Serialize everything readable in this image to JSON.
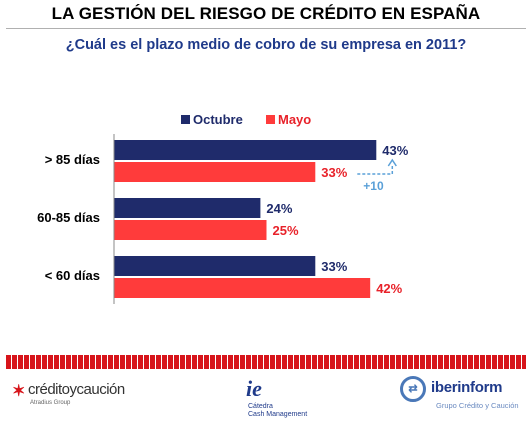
{
  "header": {
    "title": "LA GESTIÓN DEL RIESGO DE CRÉDITO EN ESPAÑA"
  },
  "chart_data": {
    "type": "bar",
    "orientation": "horizontal",
    "title": "¿Cuál es el plazo medio de cobro de su empresa en 2011?",
    "categories": [
      "> 85 días",
      "60-85 días",
      "< 60 días"
    ],
    "series": [
      {
        "name": "Octubre",
        "values": [
          43,
          24,
          33
        ],
        "labels": [
          "43%",
          "24%",
          "33%"
        ],
        "color": "#1f2b6b"
      },
      {
        "name": "Mayo",
        "values": [
          33,
          25,
          42
        ],
        "labels": [
          "33%",
          "25%",
          "42%"
        ],
        "color": "#ff3b3b"
      }
    ],
    "xlim": [
      0,
      50
    ],
    "legend_position": "top",
    "annotation": {
      "category": "> 85 días",
      "text": "+10",
      "color": "#5aa0d8"
    },
    "grid": false
  },
  "footer": {
    "logo_left": {
      "name": "créditoycaución",
      "sub": "Atradius Group",
      "icon": "star-icon"
    },
    "logo_center": {
      "mark": "ie",
      "line1": "Cátedra",
      "line2": "Cash Management"
    },
    "logo_right": {
      "name": "iberinform",
      "sub": "Grupo Crédito y Caución",
      "icon": "arrows-circle-icon"
    }
  }
}
